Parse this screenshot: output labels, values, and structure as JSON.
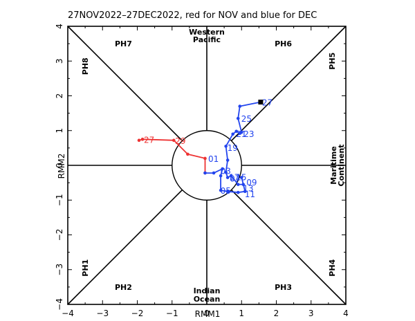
{
  "chart_data": {
    "type": "line",
    "title": "27NOV2022–27DEC2022, red for NOV and blue for DEC",
    "xlabel": "RMM1",
    "ylabel": "RMM2",
    "xlim": [
      -4,
      4
    ],
    "ylim": [
      -4,
      4
    ],
    "x_ticks": [
      "−4",
      "−3",
      "−2",
      "−1",
      "0",
      "1",
      "2",
      "3",
      "4"
    ],
    "y_ticks": [
      "4",
      "3",
      "2",
      "1",
      "0",
      "−1",
      "−2",
      "−3",
      "−4"
    ],
    "phase_labels": [
      {
        "text": "PH7",
        "at": [
          -2.4,
          3.5
        ]
      },
      {
        "text": "PH6",
        "at": [
          2.2,
          3.5
        ]
      },
      {
        "text": "PH2",
        "at": [
          -2.4,
          -3.5
        ]
      },
      {
        "text": "PH3",
        "at": [
          2.2,
          -3.5
        ]
      }
    ],
    "phase_labels_vertical": [
      {
        "text": "PH8",
        "at": [
          -3.5,
          2.85
        ]
      },
      {
        "text": "PH5",
        "at": [
          3.6,
          3.0
        ]
      },
      {
        "text": "PH1",
        "at": [
          -3.5,
          -2.95
        ]
      },
      {
        "text": "PH4",
        "at": [
          3.6,
          -2.95
        ]
      }
    ],
    "region_labels": {
      "top": [
        "Western",
        "Pacific"
      ],
      "bottom": [
        "Indian",
        "Ocean"
      ],
      "right": [
        "Maritime",
        "Continent"
      ]
    },
    "colors": {
      "nov": "#ee3333",
      "dec": "#2244ee",
      "end_marker": "#000000",
      "axes": "#000000"
    },
    "series": [
      {
        "name": "NOV",
        "color": "#ee3333",
        "points": [
          [
            -1.95,
            0.72
          ],
          [
            -1.85,
            0.75
          ],
          [
            -0.95,
            0.72
          ],
          [
            -0.55,
            0.32
          ],
          [
            -0.05,
            0.2
          ],
          [
            -0.05,
            -0.22
          ]
        ],
        "day_labels": [
          {
            "text": "27",
            "at": [
              -1.85,
              0.75
            ]
          },
          {
            "text": "29",
            "at": [
              -0.95,
              0.72
            ]
          }
        ]
      },
      {
        "name": "DEC",
        "color": "#2244ee",
        "points": [
          [
            -0.05,
            -0.22
          ],
          [
            0.2,
            -0.22
          ],
          [
            0.45,
            -0.1
          ],
          [
            0.4,
            -0.3
          ],
          [
            0.4,
            -0.72
          ],
          [
            0.6,
            -0.75
          ],
          [
            0.9,
            -0.78
          ],
          [
            1.1,
            -0.75
          ],
          [
            1.0,
            -0.35
          ],
          [
            1.05,
            -0.55
          ],
          [
            0.9,
            -0.55
          ],
          [
            0.7,
            -0.3
          ],
          [
            0.6,
            -0.35
          ],
          [
            0.55,
            -0.2
          ],
          [
            0.6,
            0.15
          ],
          [
            0.55,
            0.55
          ],
          [
            0.75,
            0.9
          ],
          [
            0.85,
            0.98
          ],
          [
            0.95,
            0.92
          ],
          [
            1.0,
            0.95
          ],
          [
            0.9,
            1.35
          ],
          [
            0.95,
            1.7
          ],
          [
            1.55,
            1.82
          ]
        ],
        "day_labels": [
          {
            "text": "01",
            "at": [
              0.0,
              0.2
            ]
          },
          {
            "text": "03",
            "at": [
              0.35,
              -0.15
            ]
          },
          {
            "text": "05",
            "at": [
              0.35,
              -0.72
            ]
          },
          {
            "text": "07",
            "at": [
              0.62,
              -0.37
            ]
          },
          {
            "text": "09",
            "at": [
              1.1,
              -0.48
            ]
          },
          {
            "text": "11",
            "at": [
              1.05,
              -0.82
            ]
          },
          {
            "text": "13",
            "at": [
              1.0,
              -0.65
            ]
          },
          {
            "text": "15",
            "at": [
              0.8,
              -0.33
            ]
          },
          {
            "text": "17",
            "at": [
              0.6,
              -0.33
            ]
          },
          {
            "text": "19",
            "at": [
              0.55,
              0.52
            ]
          },
          {
            "text": "21",
            "at": [
              0.8,
              0.92
            ]
          },
          {
            "text": "23",
            "at": [
              1.02,
              0.92
            ]
          },
          {
            "text": "25",
            "at": [
              0.95,
              1.35
            ]
          },
          {
            "text": "27",
            "at": [
              1.55,
              1.82
            ]
          }
        ]
      }
    ]
  }
}
